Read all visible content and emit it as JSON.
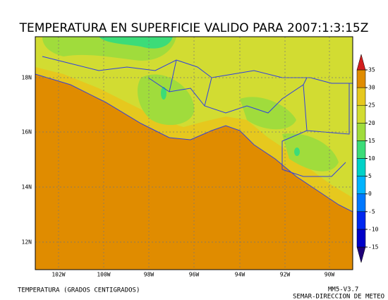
{
  "title": "TEMPERATURA EN SUPERFICIE VALIDO PARA 2007:1:3:15Z",
  "map": {
    "lat_ticks": [
      "12N",
      "14N",
      "16N",
      "18N"
    ],
    "lon_ticks": [
      "102W",
      "100W",
      "98W",
      "96W",
      "94W",
      "92W",
      "90W"
    ]
  },
  "colorbar": {
    "levels": [
      -15,
      -10,
      -5,
      0,
      5,
      10,
      15,
      20,
      25,
      30,
      35
    ],
    "colors": [
      "#1e0078",
      "#0000c8",
      "#0028f0",
      "#0078ff",
      "#00b4ff",
      "#00d2c8",
      "#3cdc78",
      "#a0dc3c",
      "#d2dc32",
      "#e6c81e",
      "#e08c00",
      "#d21e1e"
    ]
  },
  "footer": {
    "left": "TEMPERATURA (GRADOS CENTIGRADOS)",
    "model": "MM5-V3.7",
    "credit": "SEMAR-DIRECCION DE METEO"
  }
}
